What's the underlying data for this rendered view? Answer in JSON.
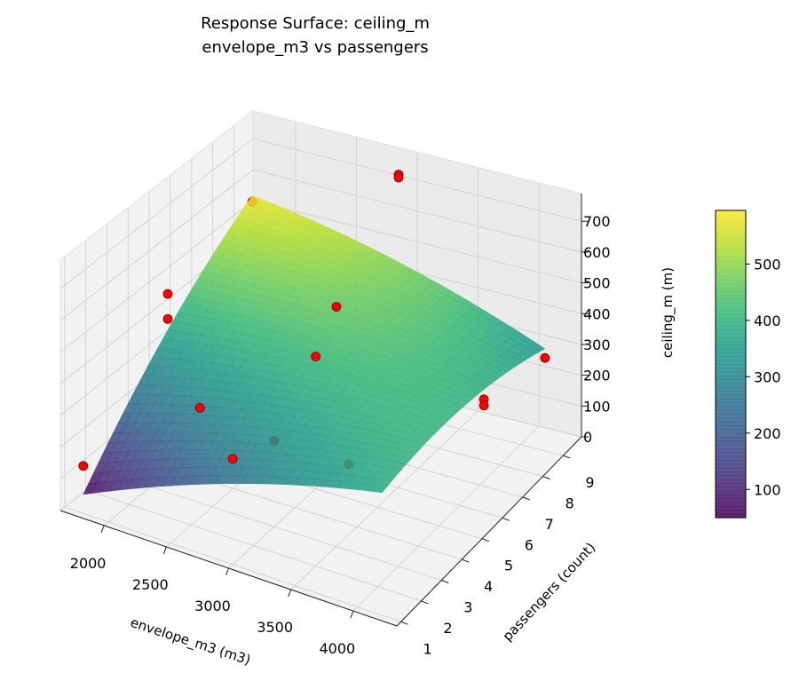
{
  "chart_data": {
    "type": "surface3d",
    "title": "Response Surface: ceiling_m",
    "subtitle": "envelope_m3 vs passengers",
    "xlabel": "envelope_m3 (m3)",
    "ylabel": "passengers (count)",
    "zlabel": "ceiling_m (m)",
    "xlim": [
      1650,
      4350
    ],
    "ylim": [
      0.8,
      9.9
    ],
    "zlim": [
      0,
      790
    ],
    "xticks": [
      "2000",
      "2500",
      "3000",
      "3500",
      "4000"
    ],
    "yticks": [
      "1",
      "2",
      "3",
      "4",
      "5",
      "6",
      "7",
      "8",
      "9"
    ],
    "zticks": [
      "0",
      "100",
      "200",
      "300",
      "400",
      "500",
      "600",
      "700"
    ],
    "grid": true,
    "colormap": "viridis",
    "surface": {
      "x_range": [
        1800,
        4200
      ],
      "y_range": [
        1,
        9
      ],
      "model": "z = c0 + c1*s + c2*t + c3*s^2 + c4*t^2 + c5*s*t, s=(x-1800)/2400, t=(y-1)/8",
      "coefficients": [
        60,
        450,
        700,
        -130,
        -180,
        -570
      ],
      "alpha": 0.85
    },
    "points_color": "#ff0000",
    "points": [
      {
        "x": 1800,
        "y": 1,
        "z": 150
      },
      {
        "x": 3000,
        "y": 1,
        "z": 330
      },
      {
        "x": 1800,
        "y": 5,
        "z": 480
      },
      {
        "x": 1800,
        "y": 5,
        "z": 400
      },
      {
        "x": 1800,
        "y": 9,
        "z": 560
      },
      {
        "x": 3000,
        "y": 9,
        "z": 770
      },
      {
        "x": 3000,
        "y": 9,
        "z": 760
      },
      {
        "x": 3000,
        "y": 6,
        "z": 520
      },
      {
        "x": 3000,
        "y": 5,
        "z": 420
      },
      {
        "x": 2400,
        "y": 3,
        "z": 300
      },
      {
        "x": 3000,
        "y": 3,
        "z": 270
      },
      {
        "x": 3600,
        "y": 3,
        "z": 270
      },
      {
        "x": 4200,
        "y": 6,
        "z": 360
      },
      {
        "x": 4200,
        "y": 6,
        "z": 340
      },
      {
        "x": 4200,
        "y": 9,
        "z": 300
      }
    ],
    "colorbar": {
      "range": [
        50,
        595
      ],
      "ticks": [
        "100",
        "200",
        "300",
        "400",
        "500"
      ]
    }
  }
}
